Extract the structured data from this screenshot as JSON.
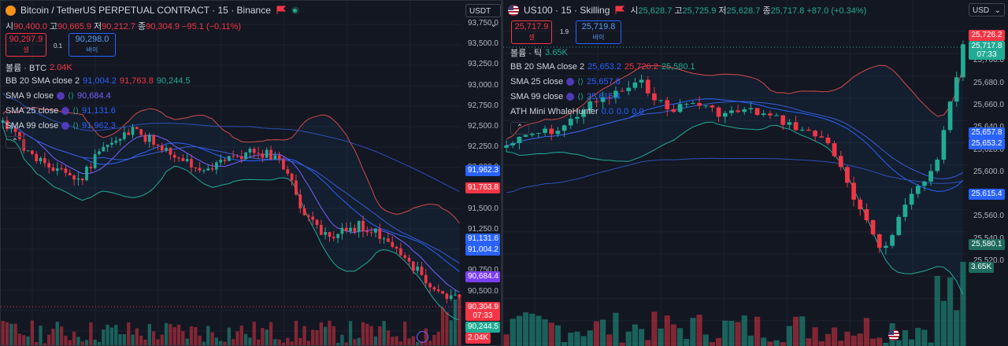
{
  "left_chart": {
    "title": "Bitcoin / TetherUS PERPETUAL CONTRACT · 15 · Binance",
    "ohlc": {
      "o_label": "시",
      "o": "90,400.0",
      "h_label": "고",
      "h": "90,665.9",
      "l_label": "저",
      "l": "90,212.7",
      "c_label": "종",
      "c": "90,304.9",
      "change": "−95.1 (−0.11%)"
    },
    "sell": {
      "price": "90,297.9",
      "label": "셀"
    },
    "spread": "0.1",
    "buy": {
      "price": "90,298.0",
      "label": "바이"
    },
    "currency": "USDT",
    "indicators": [
      {
        "name": "볼륨 · BTC",
        "values": [
          "2.04K"
        ]
      },
      {
        "name": "BB 20 SMA close 2",
        "values": [
          "91,004.2",
          "91,763.8",
          "90,244.5"
        ]
      },
      {
        "name": "SMA 9 close",
        "values": [
          "90,684.4"
        ]
      },
      {
        "name": "SMA 25 close",
        "values": [
          "91,131.6"
        ]
      },
      {
        "name": "SMA 99 close",
        "values": [
          "91,962.3"
        ]
      }
    ],
    "collapse_glyph": "⌃",
    "axis_ticks": [
      "93,750.0",
      "93,500.0",
      "93,250.0",
      "93,000.0",
      "92,750.0",
      "92,500.0",
      "92,250.0",
      "92,000.0",
      "91,750.0",
      "91,500.0",
      "91,250.0",
      "91,000.0",
      "90,750.0",
      "90,500.0",
      "90,250.0"
    ],
    "price_labels": {
      "sma99": "91,962.3",
      "bb_upper": "91,763.8",
      "sma25": "91,131.6",
      "bb_basis": "91,004.2",
      "sma9": "90,684.4",
      "last": "90,304.9",
      "countdown": "07:33",
      "bb_lower": "90,244.5",
      "volume": "2.04K"
    }
  },
  "right_chart": {
    "title": "US100 · 15 · Skilling",
    "ohlc": {
      "o_label": "시",
      "o": "25,628.7",
      "h_label": "고",
      "h": "25,725.9",
      "l_label": "저",
      "l": "25,628.7",
      "c_label": "종",
      "c": "25,717.8",
      "change": "+87.0 (+0.34%)"
    },
    "sell": {
      "price": "25,717.9",
      "label": "셀"
    },
    "spread": "1.9",
    "buy": {
      "price": "25,719.8",
      "label": "바이"
    },
    "currency": "USD",
    "indicators": [
      {
        "name": "볼륨 · 틱",
        "values": [
          "3.65K"
        ]
      },
      {
        "name": "BB 20 SMA close 2",
        "values": [
          "25,653.2",
          "25,726.2",
          "25,580.1"
        ]
      },
      {
        "name": "SMA 25 close",
        "values": [
          "25,657.8"
        ]
      },
      {
        "name": "SMA 99 close",
        "values": [
          "25,615.4"
        ]
      },
      {
        "name": "ATH Mini WhaleHunter",
        "values": [
          "0.0",
          "0.0",
          "0.0"
        ]
      }
    ],
    "collapse_glyph": "⌃",
    "axis_ticks": [
      "25,720.0",
      "25,700.0",
      "25,680.0",
      "25,660.0",
      "25,640.0",
      "25,620.0",
      "25,600.0",
      "25,580.0",
      "25,560.0",
      "25,540.0",
      "25,520.0"
    ],
    "price_labels": {
      "bb_upper": "25,726.2",
      "last": "25,717.8",
      "countdown": "07:33",
      "sma25": "25,657.8",
      "bb_basis": "25,653.2",
      "sma99": "25,615.4",
      "bb_lower": "25,580.1",
      "volume": "3.65K"
    }
  },
  "colors": {
    "up": "#22ab94",
    "down": "#f23645",
    "bb": "#d14b4b",
    "bb_lower": "#22ab94",
    "sma": "#2962ff",
    "sma9": "#7b61ff",
    "bg": "#131722"
  }
}
